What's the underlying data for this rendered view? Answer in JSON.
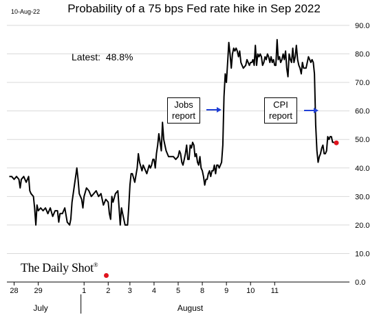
{
  "date_stamp": "10-Aug-22",
  "annotations": {
    "latest_label": "Latest:",
    "latest_value": "48.8%",
    "box1_line1": "Jobs",
    "box1_line2": "report",
    "box2_line1": "CPI",
    "box2_line2": "report",
    "logo_text": "The Daily Shot",
    "logo_mark": "®"
  },
  "colors": {
    "line": "#000000",
    "grid": "#d9d9d9",
    "arrow": "#1f3fd6",
    "last_point": "#e0141e"
  },
  "chart_data": {
    "type": "line",
    "title": "Probability of a 75 bps Fed rate hike in Sep 2022",
    "xlabel": "",
    "ylabel": "",
    "ylim": [
      0,
      90
    ],
    "y_ticks": [
      "0.0",
      "10.0",
      "20.0",
      "30.0",
      "40.0",
      "50.0",
      "60.0",
      "70.0",
      "80.0",
      "90.0"
    ],
    "y_tick_values": [
      0,
      10,
      20,
      30,
      40,
      50,
      60,
      70,
      80,
      90
    ],
    "y_axis_side": "right",
    "grid": "horizontal",
    "x_range": [
      -0.1,
      14.1
    ],
    "x_ticks": [
      {
        "label": "28",
        "x": 0.2
      },
      {
        "label": "29",
        "x": 1.2
      },
      {
        "label": "1",
        "x": 3.1
      },
      {
        "label": "2",
        "x": 4.1
      },
      {
        "label": "3",
        "x": 5.0
      },
      {
        "label": "4",
        "x": 6.0
      },
      {
        "label": "5",
        "x": 7.0
      },
      {
        "label": "8",
        "x": 8.0
      },
      {
        "label": "9",
        "x": 9.0
      },
      {
        "label": "10",
        "x": 10.0
      },
      {
        "label": "11",
        "x": 11.0
      }
    ],
    "month_labels": [
      {
        "label": "July",
        "x": 1.3
      },
      {
        "label": "August",
        "x": 7.5
      }
    ],
    "series": [
      {
        "values": [
          [
            0.0,
            37
          ],
          [
            0.1,
            37
          ],
          [
            0.2,
            36
          ],
          [
            0.3,
            37
          ],
          [
            0.4,
            36
          ],
          [
            0.45,
            33
          ],
          [
            0.5,
            36
          ],
          [
            0.6,
            37
          ],
          [
            0.7,
            35
          ],
          [
            0.8,
            37
          ],
          [
            0.85,
            32
          ],
          [
            0.9,
            31
          ],
          [
            1.0,
            30
          ],
          [
            1.05,
            26
          ],
          [
            1.1,
            20
          ],
          [
            1.15,
            27
          ],
          [
            1.2,
            25
          ],
          [
            1.3,
            26
          ],
          [
            1.4,
            25
          ],
          [
            1.5,
            26
          ],
          [
            1.6,
            24
          ],
          [
            1.7,
            26
          ],
          [
            1.8,
            23
          ],
          [
            1.9,
            25
          ],
          [
            2.0,
            25
          ],
          [
            2.05,
            21
          ],
          [
            2.1,
            24
          ],
          [
            2.2,
            24
          ],
          [
            2.3,
            26
          ],
          [
            2.4,
            21
          ],
          [
            2.5,
            20
          ],
          [
            2.55,
            22
          ],
          [
            2.6,
            28
          ],
          [
            2.7,
            34
          ],
          [
            2.75,
            37
          ],
          [
            2.8,
            40
          ],
          [
            2.85,
            36
          ],
          [
            2.9,
            31
          ],
          [
            3.0,
            29
          ],
          [
            3.05,
            26
          ],
          [
            3.1,
            30
          ],
          [
            3.2,
            33
          ],
          [
            3.3,
            32
          ],
          [
            3.4,
            30
          ],
          [
            3.5,
            31
          ],
          [
            3.6,
            32
          ],
          [
            3.7,
            30
          ],
          [
            3.8,
            31
          ],
          [
            3.9,
            27
          ],
          [
            4.0,
            29
          ],
          [
            4.1,
            28
          ],
          [
            4.15,
            24
          ],
          [
            4.2,
            22
          ],
          [
            4.25,
            30
          ],
          [
            4.3,
            28
          ],
          [
            4.4,
            31
          ],
          [
            4.5,
            32
          ],
          [
            4.55,
            26
          ],
          [
            4.6,
            20
          ],
          [
            4.65,
            26
          ],
          [
            4.7,
            24
          ],
          [
            4.8,
            20
          ],
          [
            4.9,
            20
          ],
          [
            4.95,
            26
          ],
          [
            5.0,
            34
          ],
          [
            5.05,
            38
          ],
          [
            5.1,
            38
          ],
          [
            5.2,
            35
          ],
          [
            5.3,
            40
          ],
          [
            5.35,
            45
          ],
          [
            5.4,
            42
          ],
          [
            5.5,
            39
          ],
          [
            5.55,
            41
          ],
          [
            5.6,
            40
          ],
          [
            5.7,
            38
          ],
          [
            5.8,
            41
          ],
          [
            5.85,
            40
          ],
          [
            5.9,
            41
          ],
          [
            5.95,
            43
          ],
          [
            6.0,
            43
          ],
          [
            6.05,
            40
          ],
          [
            6.1,
            45
          ],
          [
            6.15,
            48
          ],
          [
            6.2,
            52
          ],
          [
            6.25,
            49
          ],
          [
            6.3,
            46
          ],
          [
            6.35,
            56
          ],
          [
            6.4,
            50
          ],
          [
            6.45,
            48
          ],
          [
            6.5,
            46
          ],
          [
            6.6,
            44
          ],
          [
            6.7,
            44
          ],
          [
            6.8,
            44
          ],
          [
            6.9,
            43
          ],
          [
            7.0,
            44
          ],
          [
            7.05,
            46
          ],
          [
            7.1,
            45
          ],
          [
            7.15,
            42
          ],
          [
            7.2,
            41
          ],
          [
            7.25,
            43
          ],
          [
            7.3,
            45
          ],
          [
            7.35,
            48
          ],
          [
            7.4,
            43
          ],
          [
            7.45,
            43
          ],
          [
            7.5,
            48
          ],
          [
            7.55,
            47
          ],
          [
            7.6,
            49
          ],
          [
            7.65,
            48
          ],
          [
            7.7,
            44
          ],
          [
            7.75,
            45
          ],
          [
            7.8,
            42
          ],
          [
            7.85,
            41
          ],
          [
            7.9,
            44
          ],
          [
            7.95,
            40
          ],
          [
            8.0,
            39
          ],
          [
            8.05,
            37
          ],
          [
            8.1,
            34
          ],
          [
            8.15,
            36
          ],
          [
            8.2,
            36
          ],
          [
            8.25,
            38
          ],
          [
            8.3,
            39
          ],
          [
            8.35,
            37
          ],
          [
            8.4,
            39
          ],
          [
            8.45,
            39
          ],
          [
            8.5,
            41
          ],
          [
            8.55,
            38
          ],
          [
            8.6,
            41
          ],
          [
            8.65,
            41
          ],
          [
            8.7,
            40
          ],
          [
            8.75,
            41
          ],
          [
            8.8,
            42
          ],
          [
            8.85,
            48
          ],
          [
            8.9,
            65
          ],
          [
            8.95,
            73
          ],
          [
            9.0,
            70
          ],
          [
            9.05,
            77
          ],
          [
            9.1,
            84
          ],
          [
            9.15,
            80
          ],
          [
            9.2,
            75
          ],
          [
            9.25,
            80
          ],
          [
            9.3,
            82
          ],
          [
            9.35,
            81
          ],
          [
            9.4,
            82
          ],
          [
            9.45,
            81
          ],
          [
            9.5,
            79
          ],
          [
            9.55,
            81
          ],
          [
            9.6,
            77
          ],
          [
            9.65,
            76
          ],
          [
            9.7,
            75
          ],
          [
            9.8,
            76
          ],
          [
            9.85,
            78
          ],
          [
            9.9,
            77
          ],
          [
            9.95,
            76
          ],
          [
            10.0,
            77
          ],
          [
            10.05,
            77
          ],
          [
            10.1,
            78
          ],
          [
            10.15,
            76
          ],
          [
            10.2,
            83
          ],
          [
            10.25,
            76
          ],
          [
            10.3,
            80
          ],
          [
            10.35,
            79
          ],
          [
            10.4,
            80
          ],
          [
            10.45,
            79
          ],
          [
            10.5,
            76
          ],
          [
            10.55,
            77
          ],
          [
            10.6,
            79
          ],
          [
            10.65,
            78
          ],
          [
            10.7,
            80
          ],
          [
            10.75,
            79
          ],
          [
            10.8,
            77
          ],
          [
            10.85,
            79
          ],
          [
            10.9,
            77
          ],
          [
            10.95,
            78
          ],
          [
            11.0,
            76
          ],
          [
            11.05,
            76
          ],
          [
            11.1,
            85
          ],
          [
            11.15,
            78
          ],
          [
            11.2,
            79
          ],
          [
            11.25,
            77
          ],
          [
            11.3,
            78
          ],
          [
            11.35,
            80
          ],
          [
            11.4,
            78
          ],
          [
            11.45,
            81
          ],
          [
            11.5,
            75
          ],
          [
            11.55,
            72
          ],
          [
            11.6,
            80
          ],
          [
            11.65,
            78
          ],
          [
            11.7,
            77
          ],
          [
            11.75,
            82
          ],
          [
            11.8,
            77
          ],
          [
            11.85,
            79
          ],
          [
            11.9,
            83
          ],
          [
            11.95,
            78
          ],
          [
            12.0,
            76
          ],
          [
            12.05,
            75
          ],
          [
            12.1,
            73
          ],
          [
            12.15,
            77
          ],
          [
            12.2,
            75
          ],
          [
            12.3,
            75
          ],
          [
            12.4,
            79
          ],
          [
            12.45,
            78
          ],
          [
            12.5,
            77
          ],
          [
            12.55,
            78
          ],
          [
            12.6,
            77
          ],
          [
            12.65,
            73
          ],
          [
            12.7,
            55
          ],
          [
            12.75,
            46
          ],
          [
            12.8,
            42
          ],
          [
            12.85,
            44
          ],
          [
            12.9,
            45
          ],
          [
            12.95,
            47
          ],
          [
            13.0,
            48
          ],
          [
            13.05,
            45
          ],
          [
            13.1,
            45
          ],
          [
            13.15,
            46
          ],
          [
            13.2,
            51
          ],
          [
            13.25,
            50
          ],
          [
            13.3,
            51
          ],
          [
            13.35,
            51
          ],
          [
            13.4,
            49
          ],
          [
            13.45,
            49
          ],
          [
            13.5,
            48.8
          ]
        ]
      }
    ]
  }
}
